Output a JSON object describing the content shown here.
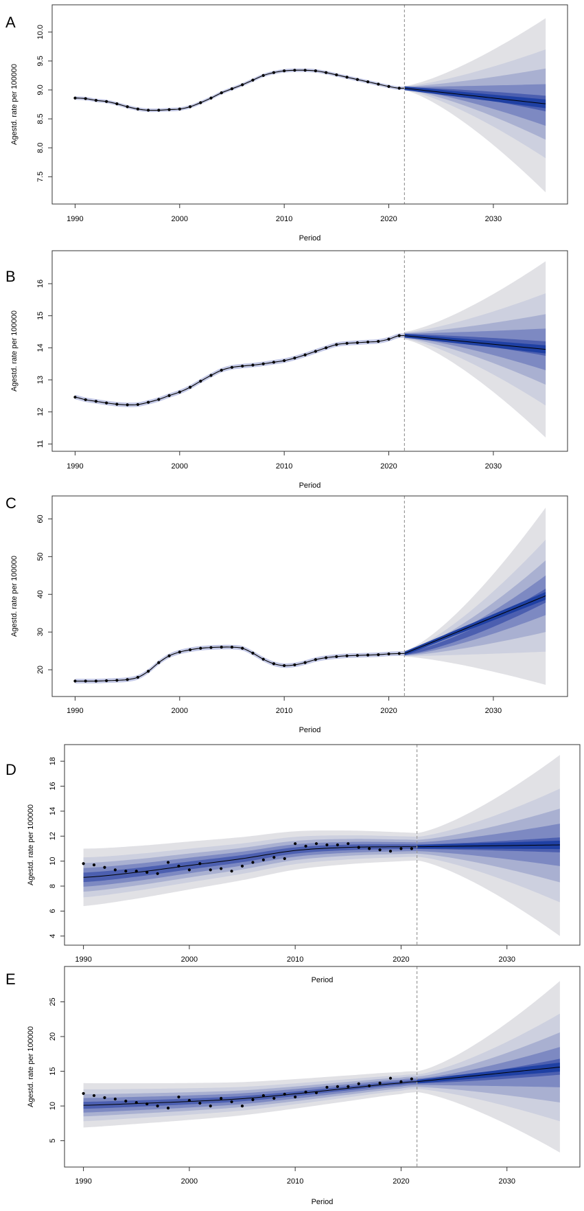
{
  "figure": {
    "colors": {
      "fan_outer": "#e1e1e5",
      "fan_2": "#cdd0df",
      "fan_3": "#a9b0d1",
      "fan_4": "#7d89c2",
      "fan_5": "#4c5fb0",
      "fan_inner": "#1f40a3",
      "hist_band": "#c3c8e6",
      "line": "#000000",
      "points": "#000000",
      "vline": "#999999",
      "frame": "#333333"
    }
  },
  "chart_data": [
    {
      "panel": "A",
      "type": "line",
      "subtype": "bapc-projection-fan",
      "xlabel": "Period",
      "ylabel": "Agestd. rate per 100000",
      "xlim": [
        1988.2,
        2036.7
      ],
      "ylim": [
        7.1,
        10.4
      ],
      "xticks": [
        1990,
        2000,
        2010,
        2020,
        2030
      ],
      "xtick_labels": [
        "1990",
        "2000",
        "2010",
        "2020",
        "2030"
      ],
      "yticks": [
        7.5,
        8.0,
        8.5,
        9.0,
        9.5,
        10.0
      ],
      "ytick_labels": [
        "7.5",
        "8.0",
        "8.5",
        "9.0",
        "9.5",
        "10.0"
      ],
      "projection_start": 2021.5,
      "observed": {
        "x": [
          1990,
          1991,
          1992,
          1993,
          1994,
          1995,
          1996,
          1997,
          1998,
          1999,
          2000,
          2001,
          2002,
          2003,
          2004,
          2005,
          2006,
          2007,
          2008,
          2009,
          2010,
          2011,
          2012,
          2013,
          2014,
          2015,
          2016,
          2017,
          2018,
          2019,
          2020,
          2021
        ],
        "y": [
          8.86,
          8.85,
          8.82,
          8.8,
          8.76,
          8.71,
          8.67,
          8.65,
          8.65,
          8.66,
          8.67,
          8.71,
          8.78,
          8.86,
          8.95,
          9.02,
          9.09,
          9.17,
          9.25,
          9.3,
          9.33,
          9.34,
          9.34,
          9.33,
          9.3,
          9.26,
          9.22,
          9.18,
          9.14,
          9.1,
          9.06,
          9.03
        ]
      },
      "fit_band_halfwidth": 0.03,
      "forecast": {
        "x": [
          2021.5,
          2035
        ],
        "mean_end": 8.76,
        "bands_end": [
          {
            "level": 0.99,
            "lower": 7.23,
            "upper": 10.24
          },
          {
            "level": 0.9,
            "lower": 7.82,
            "upper": 9.7
          },
          {
            "level": 0.8,
            "lower": 8.14,
            "upper": 9.37
          },
          {
            "level": 0.7,
            "lower": 8.38,
            "upper": 9.1
          },
          {
            "level": 0.6,
            "lower": 8.63,
            "upper": 8.9
          }
        ],
        "start_halfwidth": 0.04
      }
    },
    {
      "panel": "B",
      "type": "line",
      "subtype": "bapc-projection-fan",
      "xlabel": "Period",
      "ylabel": "Agestd. rate per 100000",
      "xlim": [
        1988.2,
        2036.7
      ],
      "ylim": [
        10.9,
        16.9
      ],
      "xticks": [
        1990,
        2000,
        2010,
        2020,
        2030
      ],
      "xtick_labels": [
        "1990",
        "2000",
        "2010",
        "2020",
        "2030"
      ],
      "yticks": [
        11,
        12,
        13,
        14,
        15,
        16
      ],
      "ytick_labels": [
        "11",
        "12",
        "13",
        "14",
        "15",
        "16"
      ],
      "projection_start": 2021.5,
      "observed": {
        "x": [
          1990,
          1991,
          1992,
          1993,
          1994,
          1995,
          1996,
          1997,
          1998,
          1999,
          2000,
          2001,
          2002,
          2003,
          2004,
          2005,
          2006,
          2007,
          2008,
          2009,
          2010,
          2011,
          2012,
          2013,
          2014,
          2015,
          2016,
          2017,
          2018,
          2019,
          2020,
          2021
        ],
        "y": [
          12.46,
          12.38,
          12.33,
          12.28,
          12.24,
          12.22,
          12.23,
          12.3,
          12.39,
          12.51,
          12.62,
          12.77,
          12.96,
          13.14,
          13.3,
          13.39,
          13.43,
          13.46,
          13.5,
          13.55,
          13.6,
          13.68,
          13.78,
          13.89,
          14.0,
          14.1,
          14.14,
          14.16,
          14.18,
          14.2,
          14.27,
          14.38
        ]
      },
      "fit_band_halfwidth": 0.07,
      "forecast": {
        "x": [
          2021.5,
          2035
        ],
        "mean_end": 13.95,
        "bands_end": [
          {
            "level": 0.99,
            "lower": 11.2,
            "upper": 16.7
          },
          {
            "level": 0.9,
            "lower": 12.2,
            "upper": 15.7
          },
          {
            "level": 0.8,
            "lower": 12.85,
            "upper": 15.05
          },
          {
            "level": 0.7,
            "lower": 13.3,
            "upper": 14.6
          },
          {
            "level": 0.6,
            "lower": 13.75,
            "upper": 14.2
          }
        ],
        "start_halfwidth": 0.12
      }
    },
    {
      "panel": "C",
      "type": "line",
      "subtype": "bapc-projection-fan",
      "xlabel": "Period",
      "ylabel": "Agestd. rate per 100000",
      "xlim": [
        1988.2,
        2036.7
      ],
      "ylim": [
        14.0,
        65.0
      ],
      "xticks": [
        1990,
        2000,
        2010,
        2020,
        2030
      ],
      "xtick_labels": [
        "1990",
        "2000",
        "2010",
        "2020",
        "2030"
      ],
      "yticks": [
        20,
        30,
        40,
        50,
        60
      ],
      "ytick_labels": [
        "20",
        "30",
        "40",
        "50",
        "60"
      ],
      "projection_start": 2021.5,
      "observed": {
        "x": [
          1990,
          1991,
          1992,
          1993,
          1994,
          1995,
          1996,
          1997,
          1998,
          1999,
          2000,
          2001,
          2002,
          2003,
          2004,
          2005,
          2006,
          2007,
          2008,
          2009,
          2010,
          2011,
          2012,
          2013,
          2014,
          2015,
          2016,
          2017,
          2018,
          2019,
          2020,
          2021
        ],
        "y": [
          17.0,
          17.0,
          17.0,
          17.1,
          17.2,
          17.4,
          18.0,
          19.6,
          21.9,
          23.7,
          24.7,
          25.3,
          25.7,
          25.9,
          26.0,
          26.0,
          25.7,
          24.4,
          22.8,
          21.6,
          21.1,
          21.3,
          21.9,
          22.7,
          23.2,
          23.5,
          23.7,
          23.8,
          23.9,
          24.0,
          24.2,
          24.3
        ]
      },
      "fit_band_halfwidth": 0.6,
      "forecast": {
        "x": [
          2021.5,
          2035
        ],
        "mean_end": 39.6,
        "bands_end": [
          {
            "level": 0.99,
            "lower": 16.0,
            "upper": 63.0
          },
          {
            "level": 0.9,
            "lower": 24.8,
            "upper": 54.5
          },
          {
            "level": 0.8,
            "lower": 30.0,
            "upper": 49.0
          },
          {
            "level": 0.7,
            "lower": 34.5,
            "upper": 45.0
          },
          {
            "level": 0.6,
            "lower": 37.8,
            "upper": 41.5
          }
        ],
        "start_halfwidth": 0.8
      }
    },
    {
      "panel": "D",
      "type": "line",
      "subtype": "bapc-projection-fan",
      "xlabel": "Period",
      "ylabel": "Agestd. rate per 100000",
      "xlim": [
        1988.6,
        2036.5
      ],
      "ylim": [
        3.6,
        19.0
      ],
      "xticks": [
        1990,
        2000,
        2010,
        2020,
        2030
      ],
      "xtick_labels": [
        "1990",
        "2000",
        "2010",
        "2020",
        "2030"
      ],
      "yticks": [
        4,
        6,
        8,
        10,
        12,
        14,
        16,
        18
      ],
      "ytick_labels": [
        "4",
        "6",
        "8",
        "10",
        "12",
        "14",
        "16",
        "18"
      ],
      "projection_start": 2021.5,
      "observed": {
        "x": [
          1990,
          1991,
          1992,
          1993,
          1994,
          1995,
          1996,
          1997,
          1998,
          1999,
          2000,
          2001,
          2002,
          2003,
          2004,
          2005,
          2006,
          2007,
          2008,
          2009,
          2010,
          2011,
          2012,
          2013,
          2014,
          2015,
          2016,
          2017,
          2018,
          2019,
          2020,
          2021
        ],
        "y": [
          9.8,
          9.7,
          9.5,
          9.3,
          9.2,
          9.2,
          9.1,
          9.0,
          9.9,
          9.6,
          9.3,
          9.8,
          9.3,
          9.4,
          9.2,
          9.6,
          9.9,
          10.1,
          10.3,
          10.2,
          11.4,
          11.2,
          11.4,
          11.3,
          11.3,
          11.4,
          11.1,
          11.0,
          10.9,
          10.8,
          11.0,
          11.0
        ]
      },
      "fit": {
        "x": [
          1990,
          1995,
          2000,
          2005,
          2010,
          2015,
          2020,
          2021.5
        ],
        "y": [
          8.7,
          9.1,
          9.65,
          10.2,
          10.85,
          11.1,
          11.15,
          11.15
        ]
      },
      "fit_bands_halfwidth": [
        {
          "level": 0.99,
          "start": 2.3,
          "end": 1.1
        },
        {
          "level": 0.9,
          "start": 1.6,
          "end": 0.8
        },
        {
          "level": 0.8,
          "start": 1.15,
          "end": 0.55
        },
        {
          "level": 0.7,
          "start": 0.75,
          "end": 0.35
        },
        {
          "level": 0.6,
          "start": 0.38,
          "end": 0.18
        }
      ],
      "forecast": {
        "x": [
          2021.5,
          2035
        ],
        "mean_end": 11.3,
        "bands_end": [
          {
            "level": 0.99,
            "lower": 4.0,
            "upper": 18.5
          },
          {
            "level": 0.9,
            "lower": 6.7,
            "upper": 15.8
          },
          {
            "level": 0.8,
            "lower": 8.3,
            "upper": 14.2
          },
          {
            "level": 0.7,
            "lower": 9.6,
            "upper": 13.0
          },
          {
            "level": 0.6,
            "lower": 10.7,
            "upper": 11.9
          }
        ],
        "start_halfwidths": [
          1.1,
          0.8,
          0.55,
          0.35,
          0.18
        ]
      }
    },
    {
      "panel": "E",
      "type": "line",
      "subtype": "bapc-projection-fan",
      "xlabel": "Period",
      "ylabel": "Agestd. rate per 100000",
      "xlim": [
        1988.6,
        2036.5
      ],
      "ylim": [
        1.8,
        29.5
      ],
      "xticks": [
        1990,
        2000,
        2010,
        2020,
        2030
      ],
      "xtick_labels": [
        "1990",
        "2000",
        "2010",
        "2020",
        "2030"
      ],
      "yticks": [
        5,
        10,
        15,
        20,
        25
      ],
      "ytick_labels": [
        "5",
        "10",
        "15",
        "20",
        "25"
      ],
      "projection_start": 2021.5,
      "observed": {
        "x": [
          1990,
          1991,
          1992,
          1993,
          1994,
          1995,
          1996,
          1997,
          1998,
          1999,
          2000,
          2001,
          2002,
          2003,
          2004,
          2005,
          2006,
          2007,
          2008,
          2009,
          2010,
          2011,
          2012,
          2013,
          2014,
          2015,
          2016,
          2017,
          2018,
          2019,
          2020,
          2021
        ],
        "y": [
          11.8,
          11.5,
          11.2,
          11.0,
          10.7,
          10.5,
          10.3,
          10.0,
          9.7,
          11.3,
          10.8,
          10.4,
          10.0,
          11.1,
          10.6,
          10.0,
          10.9,
          11.5,
          11.1,
          11.7,
          11.3,
          12.0,
          11.9,
          12.7,
          12.8,
          12.8,
          13.2,
          12.9,
          13.3,
          14.0,
          13.5,
          13.9
        ]
      },
      "fit": {
        "x": [
          1990,
          1995,
          2000,
          2005,
          2010,
          2015,
          2020,
          2021.5
        ],
        "y": [
          10.1,
          10.35,
          10.65,
          11.05,
          11.75,
          12.55,
          13.3,
          13.5
        ]
      },
      "fit_bands_halfwidth": [
        {
          "level": 0.99,
          "start": 3.2,
          "end": 1.5
        },
        {
          "level": 0.9,
          "start": 2.3,
          "end": 1.05
        },
        {
          "level": 0.8,
          "start": 1.6,
          "end": 0.75
        },
        {
          "level": 0.7,
          "start": 1.05,
          "end": 0.48
        },
        {
          "level": 0.6,
          "start": 0.5,
          "end": 0.24
        }
      ],
      "forecast": {
        "x": [
          2021.5,
          2035
        ],
        "mean_end": 15.6,
        "bands_end": [
          {
            "level": 0.99,
            "lower": 3.3,
            "upper": 28.0
          },
          {
            "level": 0.9,
            "lower": 7.8,
            "upper": 23.3
          },
          {
            "level": 0.8,
            "lower": 10.5,
            "upper": 20.6
          },
          {
            "level": 0.7,
            "lower": 12.7,
            "upper": 18.5
          },
          {
            "level": 0.6,
            "lower": 14.5,
            "upper": 16.8
          }
        ],
        "start_halfwidths": [
          1.5,
          1.05,
          0.75,
          0.48,
          0.24
        ]
      }
    }
  ]
}
